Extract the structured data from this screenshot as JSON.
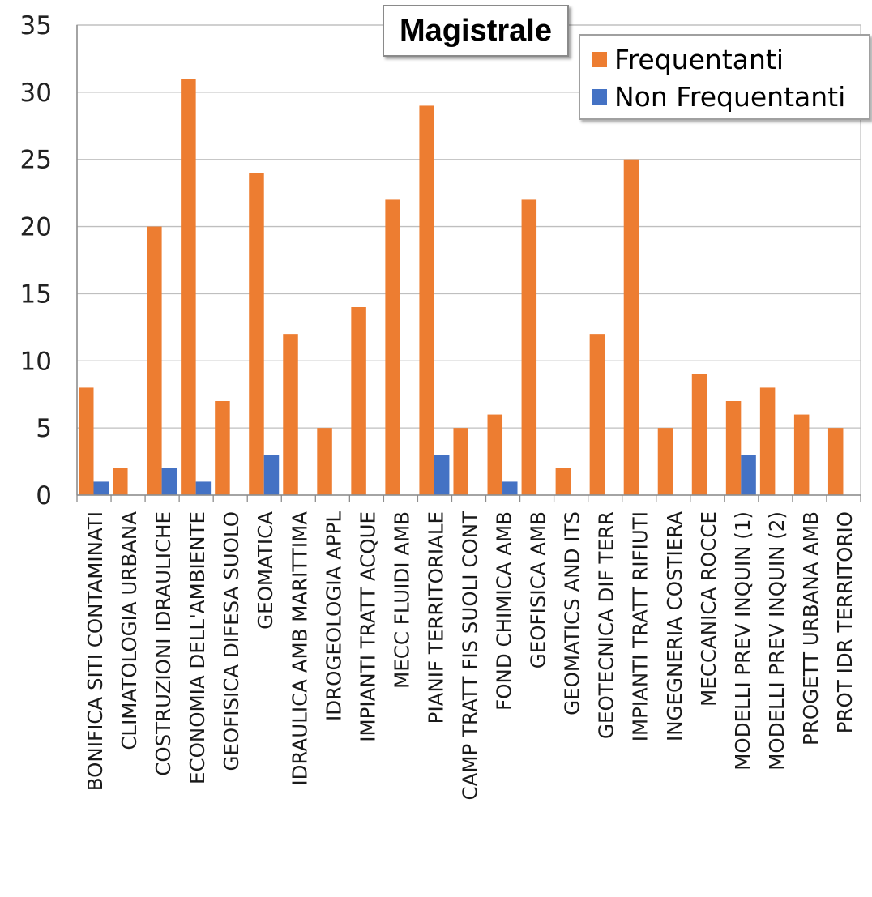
{
  "chart_data": {
    "type": "bar",
    "title": "Magistrale",
    "xlabel": "",
    "ylabel": "",
    "ylim": [
      0,
      35
    ],
    "yticks": [
      0,
      5,
      10,
      15,
      20,
      25,
      30,
      35
    ],
    "grid": true,
    "legend_position": "top-right",
    "categories": [
      "BONIFICA SITI CONTAMINATI",
      "CLIMATOLOGIA URBANA",
      "COSTRUZIONI IDRAULICHE",
      "ECONOMIA DELL'AMBIENTE",
      "GEOFISICA DIFESA SUOLO",
      "GEOMATICA",
      "IDRAULICA AMB MARITTIMA",
      "IDROGEOLOGIA APPL",
      "IMPIANTI TRATT ACQUE",
      "MECC FLUIDI AMB",
      "PIANIF TERRITORIALE",
      "CAMP TRATT FIS SUOLI CONT",
      "FOND CHIMICA AMB",
      "GEOFISICA AMB",
      "GEOMATICS AND ITS",
      "GEOTECNICA DIF TERR",
      "IMPIANTI TRATT RIFIUTI",
      "INGEGNERIA COSTIERA",
      "MECCANICA ROCCE",
      "MODELLI PREV INQUIN (1)",
      "MODELLI PREV INQUIN (2)",
      "PROGETT URBANA AMB",
      "PROT IDR TERRITORIO"
    ],
    "series": [
      {
        "name": "Frequentanti",
        "color": "#ED7D31",
        "values": [
          8,
          2,
          20,
          31,
          7,
          24,
          12,
          5,
          14,
          22,
          29,
          5,
          6,
          22,
          2,
          12,
          25,
          5,
          9,
          7,
          8,
          6,
          5
        ]
      },
      {
        "name": "Non Frequentanti",
        "color": "#4472C4",
        "values": [
          1,
          0,
          2,
          1,
          0,
          3,
          0,
          0,
          0,
          0,
          3,
          0,
          1,
          0,
          0,
          0,
          0,
          0,
          0,
          3,
          0,
          0,
          0
        ]
      }
    ]
  }
}
